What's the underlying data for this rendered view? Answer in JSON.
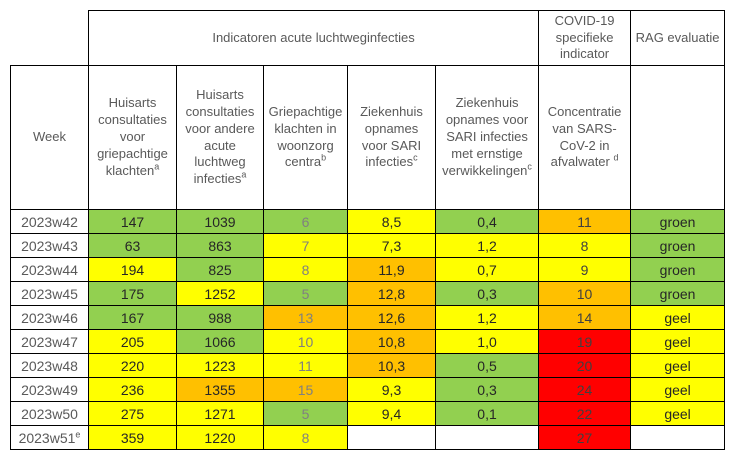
{
  "colors": {
    "green": "#92D050",
    "yellow": "#FFFF00",
    "orange": "#FFC000",
    "red": "#FF0000",
    "none": "#FFFFFF"
  },
  "chart_data": {
    "type": "table",
    "title": "",
    "group_headers": [
      {
        "label": "Indicatoren acute luchtweginfecties",
        "colspan": 5
      },
      {
        "label": "COVID-19 specifieke indicator",
        "colspan": 1
      },
      {
        "label": "RAG evaluatie",
        "colspan": 1
      }
    ],
    "column_headers": [
      {
        "label": "Week",
        "sup": ""
      },
      {
        "label": "Huisarts consultaties voor griepachtige klachten",
        "sup": "a"
      },
      {
        "label": "Huisarts consultaties voor andere acute luchtweg infecties",
        "sup": "a"
      },
      {
        "label": "Griepachtige klachten in woonzorg centra",
        "sup": "b"
      },
      {
        "label": "Ziekenhuis opnames voor SARI infecties",
        "sup": "c"
      },
      {
        "label": "Ziekenhuis opnames voor SARI infecties met ernstige verwikkelingen",
        "sup": "c"
      },
      {
        "label": "Concentratie van SARS-CoV-2 in afvalwater ",
        "sup": "d"
      }
    ],
    "rows": [
      {
        "week": "2023w42",
        "week_sup": "",
        "cells": [
          {
            "value": "147",
            "color": "green"
          },
          {
            "value": "1039",
            "color": "green"
          },
          {
            "value": "6",
            "color": "green"
          },
          {
            "value": "8,5",
            "color": "yellow"
          },
          {
            "value": "0,4",
            "color": "green"
          },
          {
            "value": "11",
            "color": "orange"
          },
          {
            "value": "groen",
            "color": "green"
          }
        ]
      },
      {
        "week": "2023w43",
        "week_sup": "",
        "cells": [
          {
            "value": "63",
            "color": "green"
          },
          {
            "value": "863",
            "color": "green"
          },
          {
            "value": "7",
            "color": "yellow"
          },
          {
            "value": "7,3",
            "color": "yellow"
          },
          {
            "value": "1,2",
            "color": "yellow"
          },
          {
            "value": "8",
            "color": "yellow"
          },
          {
            "value": "groen",
            "color": "green"
          }
        ]
      },
      {
        "week": "2023w44",
        "week_sup": "",
        "cells": [
          {
            "value": "194",
            "color": "yellow"
          },
          {
            "value": "825",
            "color": "green"
          },
          {
            "value": "8",
            "color": "yellow"
          },
          {
            "value": "11,9",
            "color": "orange"
          },
          {
            "value": "0,7",
            "color": "yellow"
          },
          {
            "value": "9",
            "color": "yellow"
          },
          {
            "value": "groen",
            "color": "green"
          }
        ]
      },
      {
        "week": "2023w45",
        "week_sup": "",
        "cells": [
          {
            "value": "175",
            "color": "green"
          },
          {
            "value": "1252",
            "color": "yellow"
          },
          {
            "value": "5",
            "color": "green"
          },
          {
            "value": "12,8",
            "color": "orange"
          },
          {
            "value": "0,3",
            "color": "green"
          },
          {
            "value": "10",
            "color": "orange"
          },
          {
            "value": "groen",
            "color": "green"
          }
        ]
      },
      {
        "week": "2023w46",
        "week_sup": "",
        "cells": [
          {
            "value": "167",
            "color": "green"
          },
          {
            "value": "988",
            "color": "green"
          },
          {
            "value": "13",
            "color": "orange"
          },
          {
            "value": "12,6",
            "color": "orange"
          },
          {
            "value": "1,2",
            "color": "yellow"
          },
          {
            "value": "14",
            "color": "orange"
          },
          {
            "value": "geel",
            "color": "yellow"
          }
        ]
      },
      {
        "week": "2023w47",
        "week_sup": "",
        "cells": [
          {
            "value": "205",
            "color": "yellow"
          },
          {
            "value": "1066",
            "color": "green"
          },
          {
            "value": "10",
            "color": "yellow"
          },
          {
            "value": "10,8",
            "color": "orange"
          },
          {
            "value": "1,0",
            "color": "yellow"
          },
          {
            "value": "19",
            "color": "red"
          },
          {
            "value": "geel",
            "color": "yellow"
          }
        ]
      },
      {
        "week": "2023w48",
        "week_sup": "",
        "cells": [
          {
            "value": "220",
            "color": "yellow"
          },
          {
            "value": "1223",
            "color": "yellow"
          },
          {
            "value": "11",
            "color": "yellow"
          },
          {
            "value": "10,3",
            "color": "orange"
          },
          {
            "value": "0,5",
            "color": "green"
          },
          {
            "value": "20",
            "color": "red"
          },
          {
            "value": "geel",
            "color": "yellow"
          }
        ]
      },
      {
        "week": "2023w49",
        "week_sup": "",
        "cells": [
          {
            "value": "236",
            "color": "yellow"
          },
          {
            "value": "1355",
            "color": "orange"
          },
          {
            "value": "15",
            "color": "orange"
          },
          {
            "value": "9,3",
            "color": "yellow"
          },
          {
            "value": "0,3",
            "color": "green"
          },
          {
            "value": "24",
            "color": "red"
          },
          {
            "value": "geel",
            "color": "yellow"
          }
        ]
      },
      {
        "week": "2023w50",
        "week_sup": "",
        "cells": [
          {
            "value": "275",
            "color": "yellow"
          },
          {
            "value": "1271",
            "color": "yellow"
          },
          {
            "value": "5",
            "color": "green"
          },
          {
            "value": "9,4",
            "color": "yellow"
          },
          {
            "value": "0,1",
            "color": "green"
          },
          {
            "value": "22",
            "color": "red"
          },
          {
            "value": "geel",
            "color": "yellow"
          }
        ]
      },
      {
        "week": "2023w51",
        "week_sup": "e",
        "cells": [
          {
            "value": "359",
            "color": "yellow"
          },
          {
            "value": "1220",
            "color": "yellow"
          },
          {
            "value": "8",
            "color": "yellow"
          },
          {
            "value": "",
            "color": "none"
          },
          {
            "value": "",
            "color": "none"
          },
          {
            "value": "27",
            "color": "red"
          },
          {
            "value": "",
            "color": "none"
          }
        ]
      }
    ]
  }
}
